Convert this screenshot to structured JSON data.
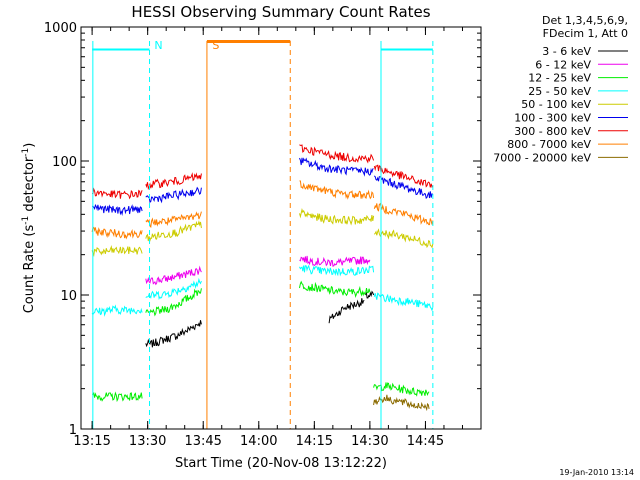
{
  "chart_data": {
    "type": "line",
    "title": "HESSI Observing Summary Count Rates",
    "xlabel": "Start Time (20-Nov-08 13:12:22)",
    "ylabel_main": "Count Rate (s",
    "ylabel_sup1": "-1",
    "ylabel_mid": " detector",
    "ylabel_sup2": "-1",
    "ylabel_end": ")",
    "footer_date": "19-Jan-2010 13:14",
    "y_scale": "log",
    "xlim_min": [
      795,
      900
    ],
    "ylim": [
      1,
      1000
    ],
    "x_ticks": [
      {
        "value": 795,
        "label": "13:15"
      },
      {
        "value": 810,
        "label": "13:30"
      },
      {
        "value": 825,
        "label": "13:45"
      },
      {
        "value": 840,
        "label": "14:00"
      },
      {
        "value": 855,
        "label": "14:15"
      },
      {
        "value": 870,
        "label": "14:30"
      },
      {
        "value": 885,
        "label": "14:45"
      }
    ],
    "y_ticks": [
      {
        "value": 1,
        "label": "1"
      },
      {
        "value": 10,
        "label": "10"
      },
      {
        "value": 100,
        "label": "100"
      },
      {
        "value": 1000,
        "label": "1000"
      }
    ],
    "legend": {
      "header": [
        "Det 1,3,4,5,6,9,",
        "FDecim 1, Att 0"
      ],
      "placement": "right"
    },
    "series": [
      {
        "name": "3 - 6 keV",
        "color": "#000000",
        "segments": [
          {
            "x": [
              809.5,
              811,
              814,
              818,
              821,
              824.5
            ],
            "y": [
              4.3,
              4.3,
              4.6,
              5.0,
              5.5,
              6.3
            ]
          },
          {
            "x": [
              859,
              861,
              863,
              866,
              868.5
            ],
            "y": [
              6.5,
              7.2,
              8.0,
              8.5,
              9.0
            ]
          },
          {
            "x": [
              868.6,
              871
            ],
            "y": [
              9.8,
              10.0
            ]
          }
        ]
      },
      {
        "name": "6 - 12 keV",
        "color": "#ee00ee",
        "segments": [
          {
            "x": [
              809.5,
              812,
              815,
              818,
              821,
              824.5
            ],
            "y": [
              12.5,
              12.8,
              13.2,
              13.8,
              14.5,
              15.5
            ]
          },
          {
            "x": [
              851,
              854,
              858,
              862,
              866,
              870
            ],
            "y": [
              19,
              18,
              17.5,
              17.5,
              18,
              18.5
            ]
          }
        ]
      },
      {
        "name": "12 - 25 keV",
        "color": "#00ee00",
        "segments": [
          {
            "x": [
              795,
              800,
              804,
              808.5
            ],
            "y": [
              1.75,
              1.75,
              1.75,
              1.75
            ]
          },
          {
            "x": [
              809.5,
              812,
              815,
              818,
              821,
              824.5
            ],
            "y": [
              7.2,
              7.5,
              7.8,
              8.5,
              9.5,
              11
            ]
          },
          {
            "x": [
              851,
              854,
              858,
              862,
              866,
              870
            ],
            "y": [
              12,
              11.5,
              11,
              10.5,
              10.5,
              11
            ]
          },
          {
            "x": [
              871,
              874,
              878,
              882,
              886
            ],
            "y": [
              2.0,
              2.1,
              2.0,
              1.9,
              1.9
            ]
          }
        ]
      },
      {
        "name": "25 - 50 keV",
        "color": "#00ffff",
        "segments": [
          {
            "x": [
              795,
              798,
              801,
              804,
              808.5
            ],
            "y": [
              7.5,
              7.6,
              7.8,
              7.7,
              7.8
            ]
          },
          {
            "x": [
              809.5,
              812,
              815,
              818,
              821,
              824.5
            ],
            "y": [
              9.8,
              10.0,
              10.2,
              10.8,
              11.5,
              12.5
            ]
          },
          {
            "x": [
              851,
              854,
              858,
              862,
              866,
              871
            ],
            "y": [
              16,
              15.5,
              15,
              15,
              15,
              15.5
            ]
          },
          {
            "x": [
              871.2,
              874,
              877,
              880,
              883,
              887
            ],
            "y": [
              10,
              9.5,
              9.2,
              9.0,
              8.6,
              8.2
            ]
          }
        ]
      },
      {
        "name": "50 - 100 keV",
        "color": "#cccc00",
        "segments": [
          {
            "x": [
              795,
              798,
              801,
              804,
              808.5
            ],
            "y": [
              21,
              21,
              21.5,
              21.5,
              21.5
            ]
          },
          {
            "x": [
              809.5,
              812,
              815,
              818,
              821,
              824.5
            ],
            "y": [
              26.5,
              27.5,
              28.5,
              29.5,
              31.5,
              33.5
            ]
          },
          {
            "x": [
              851,
              854,
              858,
              862,
              866,
              871
            ],
            "y": [
              41,
              39,
              37,
              36.5,
              36,
              37
            ]
          },
          {
            "x": [
              871.2,
              874,
              877,
              880,
              883,
              887
            ],
            "y": [
              30,
              29,
              28,
              27,
              25.5,
              24
            ]
          }
        ]
      },
      {
        "name": "100 - 300 keV",
        "color": "#0000ee",
        "segments": [
          {
            "x": [
              795,
              798,
              801,
              804,
              808.5
            ],
            "y": [
              46,
              44,
              43,
              43,
              44
            ]
          },
          {
            "x": [
              809.5,
              812,
              815,
              818,
              821,
              824.5
            ],
            "y": [
              51,
              52.5,
              54,
              56,
              58,
              60
            ]
          },
          {
            "x": [
              851,
              854,
              858,
              862,
              866,
              871
            ],
            "y": [
              101,
              95,
              89,
              86,
              84,
              84
            ]
          },
          {
            "x": [
              871.2,
              874,
              877,
              880,
              883,
              887
            ],
            "y": [
              75,
              71,
              67,
              63,
              59,
              55
            ]
          }
        ]
      },
      {
        "name": "300 - 800 keV",
        "color": "#ee0000",
        "segments": [
          {
            "x": [
              795,
              798,
              801,
              804,
              808.5
            ],
            "y": [
              59,
              57.5,
              56,
              56,
              57
            ]
          },
          {
            "x": [
              809.5,
              812,
              815,
              818,
              821,
              824.5
            ],
            "y": [
              66,
              67.5,
              69,
              71,
              74,
              77
            ]
          },
          {
            "x": [
              851,
              854,
              858,
              862,
              866,
              871
            ],
            "y": [
              126,
              120,
              113,
              108,
              105,
              105
            ]
          },
          {
            "x": [
              871.2,
              874,
              877,
              880,
              883,
              887
            ],
            "y": [
              90,
              85,
              80,
              75,
              70,
              66
            ]
          }
        ]
      },
      {
        "name": "800 - 7000 keV",
        "color": "#ff7f00",
        "segments": [
          {
            "x": [
              795,
              798,
              801,
              804,
              808.5
            ],
            "y": [
              30,
              29.5,
              29,
              28.5,
              29
            ]
          },
          {
            "x": [
              809.5,
              812,
              815,
              818,
              821,
              824.5
            ],
            "y": [
              34,
              35,
              35.5,
              36.5,
              38,
              40
            ]
          },
          {
            "x": [
              851,
              854,
              858,
              862,
              866,
              871
            ],
            "y": [
              68,
              64,
              60,
              57,
              56,
              56
            ]
          },
          {
            "x": [
              871.2,
              874,
              877,
              880,
              883,
              887
            ],
            "y": [
              46,
              44,
              42,
              40,
              37,
              35
            ]
          }
        ]
      },
      {
        "name": "7000 - 20000 keV",
        "color": "#8b6b00",
        "segments": [
          {
            "x": [
              871,
              874,
              878,
              882,
              886
            ],
            "y": [
              1.6,
              1.7,
              1.6,
              1.5,
              1.5
            ]
          }
        ]
      }
    ],
    "attenuator_bar": {
      "x": [
        826,
        848.5
      ],
      "y": 780,
      "color": "#ff7f00"
    },
    "n_bars": [
      {
        "x": [
          795,
          810.5
        ],
        "y": 680
      },
      {
        "x": [
          873,
          887
        ],
        "y": 680
      }
    ],
    "markers": [
      {
        "label": "N",
        "x": 810.5,
        "color": "#00ffff",
        "style": "dashed"
      },
      {
        "label": "",
        "x": 887,
        "color": "#00ffff",
        "style": "dashed"
      },
      {
        "label": "",
        "x": 795.2,
        "color": "#00ffff",
        "style": "solid"
      },
      {
        "label": "",
        "x": 873,
        "color": "#00ffff",
        "style": "solid"
      },
      {
        "label": "S",
        "x": 826,
        "color": "#ff7f00",
        "style": "solid"
      },
      {
        "label": "",
        "x": 848.5,
        "color": "#ff7f00",
        "style": "dashed"
      }
    ]
  }
}
